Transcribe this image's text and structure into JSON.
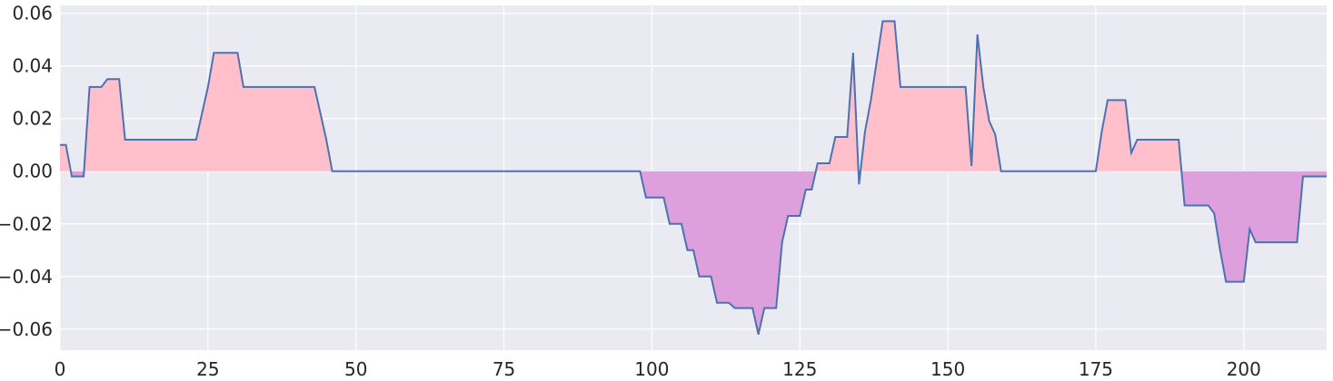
{
  "chart_data": {
    "type": "area",
    "title": "",
    "xlabel": "",
    "ylabel": "",
    "xlim": [
      0,
      214
    ],
    "ylim": [
      -0.068,
      0.063
    ],
    "xticks": [
      0,
      25,
      50,
      75,
      100,
      125,
      150,
      175,
      200
    ],
    "xtick_labels": [
      "0",
      "25",
      "50",
      "75",
      "100",
      "125",
      "150",
      "175",
      "200"
    ],
    "yticks": [
      -0.06,
      -0.04,
      -0.02,
      0.0,
      0.02,
      0.04,
      0.06
    ],
    "ytick_labels": [
      "−0.06",
      "−0.04",
      "−0.02",
      "0.00",
      "0.02",
      "0.04",
      "0.06"
    ],
    "grid": true,
    "colors": {
      "background": "#eaeaf2",
      "grid": "#ffffff",
      "line": "#4c72b0",
      "fill_positive": "#ffc0cb",
      "fill_negative": "#dda0dd"
    },
    "series": [
      {
        "points": [
          [
            0,
            0.01
          ],
          [
            1,
            0.01
          ],
          [
            2,
            -0.002
          ],
          [
            4,
            -0.002
          ],
          [
            5,
            0.032
          ],
          [
            7,
            0.032
          ],
          [
            8,
            0.035
          ],
          [
            10,
            0.035
          ],
          [
            11,
            0.012
          ],
          [
            23,
            0.012
          ],
          [
            25,
            0.032
          ],
          [
            26,
            0.045
          ],
          [
            30,
            0.045
          ],
          [
            31,
            0.032
          ],
          [
            43,
            0.032
          ],
          [
            45,
            0.012
          ],
          [
            46,
            0.0
          ],
          [
            98,
            0.0
          ],
          [
            99,
            -0.01
          ],
          [
            102,
            -0.01
          ],
          [
            103,
            -0.02
          ],
          [
            105,
            -0.02
          ],
          [
            106,
            -0.03
          ],
          [
            107,
            -0.03
          ],
          [
            108,
            -0.04
          ],
          [
            110,
            -0.04
          ],
          [
            111,
            -0.05
          ],
          [
            113,
            -0.05
          ],
          [
            114,
            -0.052
          ],
          [
            117,
            -0.052
          ],
          [
            118,
            -0.062
          ],
          [
            119,
            -0.052
          ],
          [
            121,
            -0.052
          ],
          [
            122,
            -0.027
          ],
          [
            123,
            -0.017
          ],
          [
            125,
            -0.017
          ],
          [
            126,
            -0.007
          ],
          [
            127,
            -0.007
          ],
          [
            128,
            0.003
          ],
          [
            130,
            0.003
          ],
          [
            131,
            0.013
          ],
          [
            133,
            0.013
          ],
          [
            134,
            0.045
          ],
          [
            135,
            -0.005
          ],
          [
            136,
            0.015
          ],
          [
            137,
            0.027
          ],
          [
            139,
            0.057
          ],
          [
            141,
            0.057
          ],
          [
            142,
            0.032
          ],
          [
            153,
            0.032
          ],
          [
            154,
            0.002
          ],
          [
            155,
            0.052
          ],
          [
            156,
            0.032
          ],
          [
            157,
            0.019
          ],
          [
            158,
            0.014
          ],
          [
            159,
            0.0
          ],
          [
            175,
            0.0
          ],
          [
            176,
            0.015
          ],
          [
            177,
            0.027
          ],
          [
            180,
            0.027
          ],
          [
            181,
            0.007
          ],
          [
            182,
            0.012
          ],
          [
            189,
            0.012
          ],
          [
            190,
            -0.013
          ],
          [
            194,
            -0.013
          ],
          [
            195,
            -0.016
          ],
          [
            196,
            -0.03
          ],
          [
            197,
            -0.042
          ],
          [
            200,
            -0.042
          ],
          [
            201,
            -0.022
          ],
          [
            202,
            -0.027
          ],
          [
            209,
            -0.027
          ],
          [
            210,
            -0.002
          ],
          [
            214,
            -0.002
          ]
        ]
      }
    ]
  }
}
